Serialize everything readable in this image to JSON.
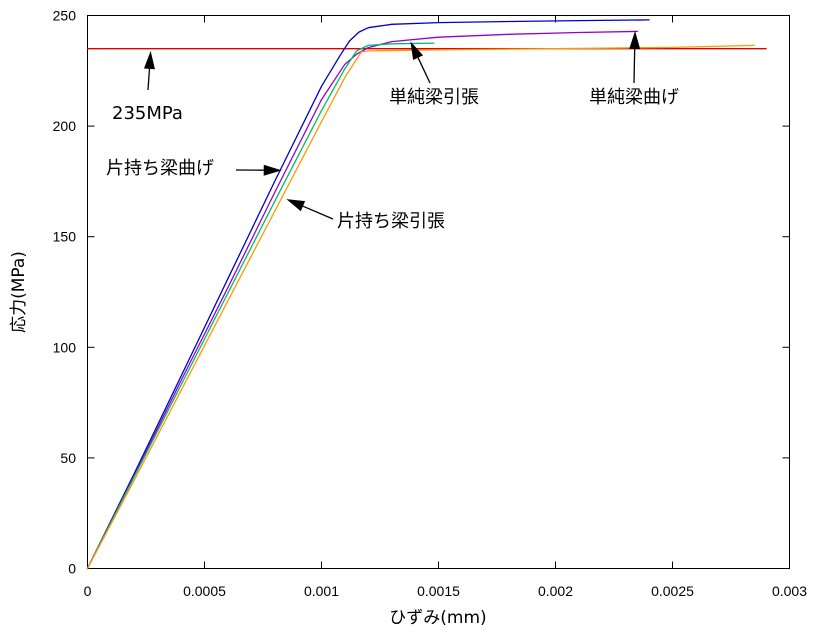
{
  "chart_data": {
    "type": "line",
    "title": "",
    "xlabel": "ひずみ(mm)",
    "ylabel": "応力(MPa)",
    "xlim": [
      0,
      0.003
    ],
    "ylim": [
      0,
      250
    ],
    "x_ticks": [
      0,
      0.0005,
      0.001,
      0.0015,
      0.002,
      0.0025,
      0.003
    ],
    "x_tick_labels": [
      "0",
      "0.0005",
      "0.001",
      "0.0015",
      "0.002",
      "0.0025",
      "0.003"
    ],
    "y_ticks": [
      0,
      50,
      100,
      150,
      200,
      250
    ],
    "y_tick_labels": [
      "0",
      "50",
      "100",
      "150",
      "200",
      "250"
    ],
    "grid": false,
    "legend": "none",
    "series": [
      {
        "color": "#dd0000",
        "points": [
          [
            0,
            235
          ],
          [
            0.0029,
            235
          ]
        ]
      },
      {
        "color": "#0000cc",
        "points": [
          [
            0,
            0
          ],
          [
            0.0002,
            43
          ],
          [
            0.0004,
            87
          ],
          [
            0.0006,
            131
          ],
          [
            0.0008,
            175
          ],
          [
            0.001,
            218
          ],
          [
            0.00108,
            232
          ],
          [
            0.00112,
            238.5
          ],
          [
            0.00116,
            242.5
          ],
          [
            0.0012,
            244.5
          ],
          [
            0.0013,
            246
          ],
          [
            0.0015,
            246.8
          ],
          [
            0.0018,
            247.3
          ],
          [
            0.0021,
            247.7
          ],
          [
            0.0024,
            248
          ]
        ]
      },
      {
        "color": "#9400d3",
        "points": [
          [
            0,
            0
          ],
          [
            0.0002,
            42
          ],
          [
            0.0004,
            85
          ],
          [
            0.0006,
            127
          ],
          [
            0.0008,
            170
          ],
          [
            0.001,
            212
          ],
          [
            0.0011,
            228
          ],
          [
            0.00115,
            232.5
          ],
          [
            0.0012,
            235.5
          ],
          [
            0.0013,
            238.2
          ],
          [
            0.0015,
            240.2
          ],
          [
            0.0018,
            241.5
          ],
          [
            0.0021,
            242.3
          ],
          [
            0.00235,
            242.8
          ]
        ]
      },
      {
        "color": "#00bb66",
        "points": [
          [
            0,
            0
          ],
          [
            0.0002,
            41.5
          ],
          [
            0.0004,
            83
          ],
          [
            0.0006,
            124.5
          ],
          [
            0.0008,
            166
          ],
          [
            0.001,
            207
          ],
          [
            0.0011,
            226
          ],
          [
            0.00115,
            234
          ],
          [
            0.0012,
            236.5
          ],
          [
            0.0013,
            237.2
          ],
          [
            0.00148,
            237.5
          ]
        ]
      },
      {
        "color": "#ff9900",
        "points": [
          [
            0,
            0
          ],
          [
            0.0002,
            40
          ],
          [
            0.0004,
            80.5
          ],
          [
            0.0006,
            121
          ],
          [
            0.0008,
            161.5
          ],
          [
            0.001,
            202
          ],
          [
            0.0011,
            222
          ],
          [
            0.00117,
            233.5
          ],
          [
            0.0012,
            234
          ],
          [
            0.0015,
            234.5
          ],
          [
            0.002,
            235
          ],
          [
            0.0025,
            235.6
          ],
          [
            0.00285,
            236.5
          ]
        ]
      }
    ],
    "annotations": [
      {
        "id": "235mpa",
        "text": "235MPa",
        "target": [
          0.00027,
          234
        ]
      },
      {
        "id": "tanjun-hiki",
        "text": "単純梁引張",
        "target": [
          0.00138,
          238.3
        ]
      },
      {
        "id": "tanjun-mage",
        "text": "単純梁曲げ",
        "target": [
          0.00234,
          243
        ]
      },
      {
        "id": "katamochi-mage",
        "text": "片持ち梁曲げ",
        "target": [
          0.00083,
          180
        ]
      },
      {
        "id": "katamochi-hiki",
        "text": "片持ち梁引張",
        "target": [
          0.00085,
          167
        ]
      }
    ]
  }
}
